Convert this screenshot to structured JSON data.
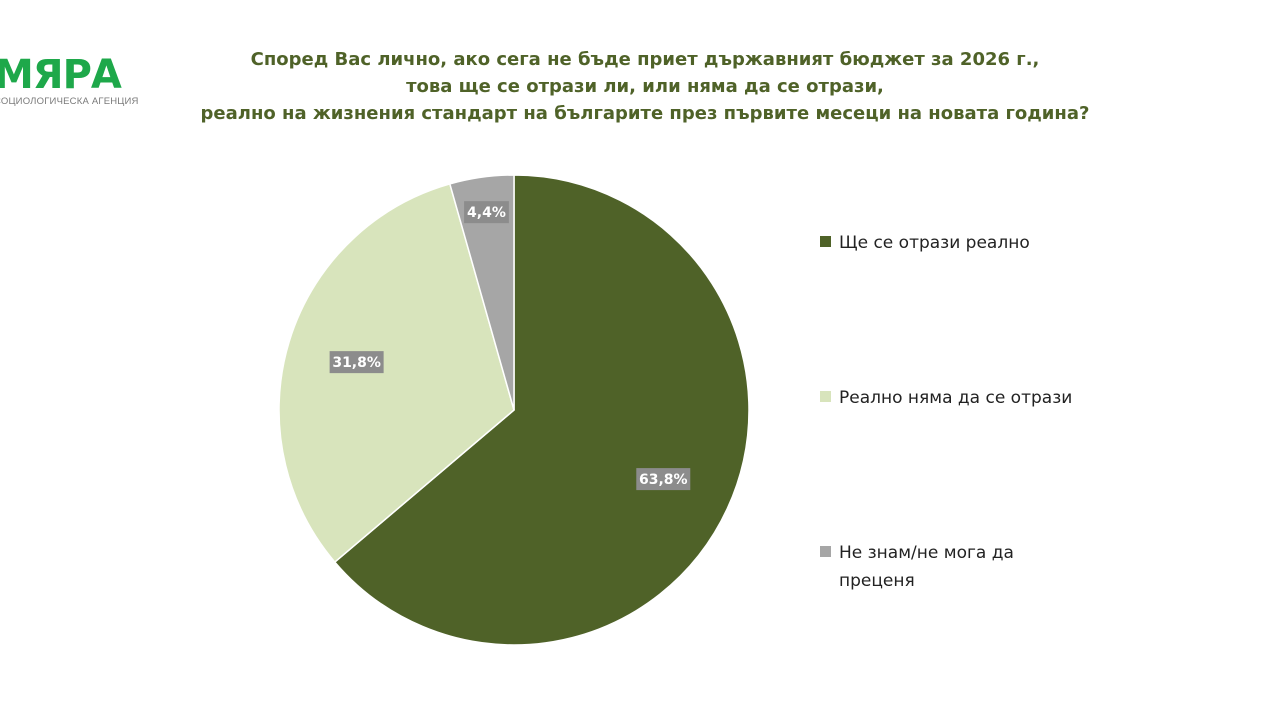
{
  "logo": {
    "wordmark": "МЯРА",
    "subtitle": "СОЦИОЛОГИЧЕСКА АГЕНЦИЯ"
  },
  "title_lines": [
    "Според Вас лично, ако сега не бъде приет държавният бюджет за 2026 г.,",
    "това ще се отрази ли, или няма да се отрази,",
    "реално на жизнения стандарт на българите през първите месеци на новата година?"
  ],
  "colors": {
    "brand_green": "#1ea84a",
    "title_green": "#4f6228",
    "label_box": "#8c8c8c"
  },
  "chart_data": {
    "type": "pie",
    "title": "Според Вас лично, ако сега не бъде приет държавният бюджет за 2026 г., това ще се отрази ли, или няма да се отрази, реално на жизнения стандарт на българите през първите месеци на новата година?",
    "start_angle_deg": 0,
    "direction": "clockwise",
    "legend_position": "right",
    "slices": [
      {
        "label": "Ще се отрази реално",
        "value": 63.8,
        "display": "63,8%",
        "color": "#4f6228",
        "legend_lines": [
          "Ще се отрази реално"
        ]
      },
      {
        "label": "Реално няма да се отрази",
        "value": 31.8,
        "display": "31,8%",
        "color": "#d8e4bc",
        "legend_lines": [
          "Реално няма да се отрази"
        ]
      },
      {
        "label": "Не знам/не мога да преценя",
        "value": 4.4,
        "display": "4,4%",
        "color": "#a6a6a6",
        "legend_lines": [
          "Не знам/не мога да",
          "преценя"
        ]
      }
    ]
  }
}
